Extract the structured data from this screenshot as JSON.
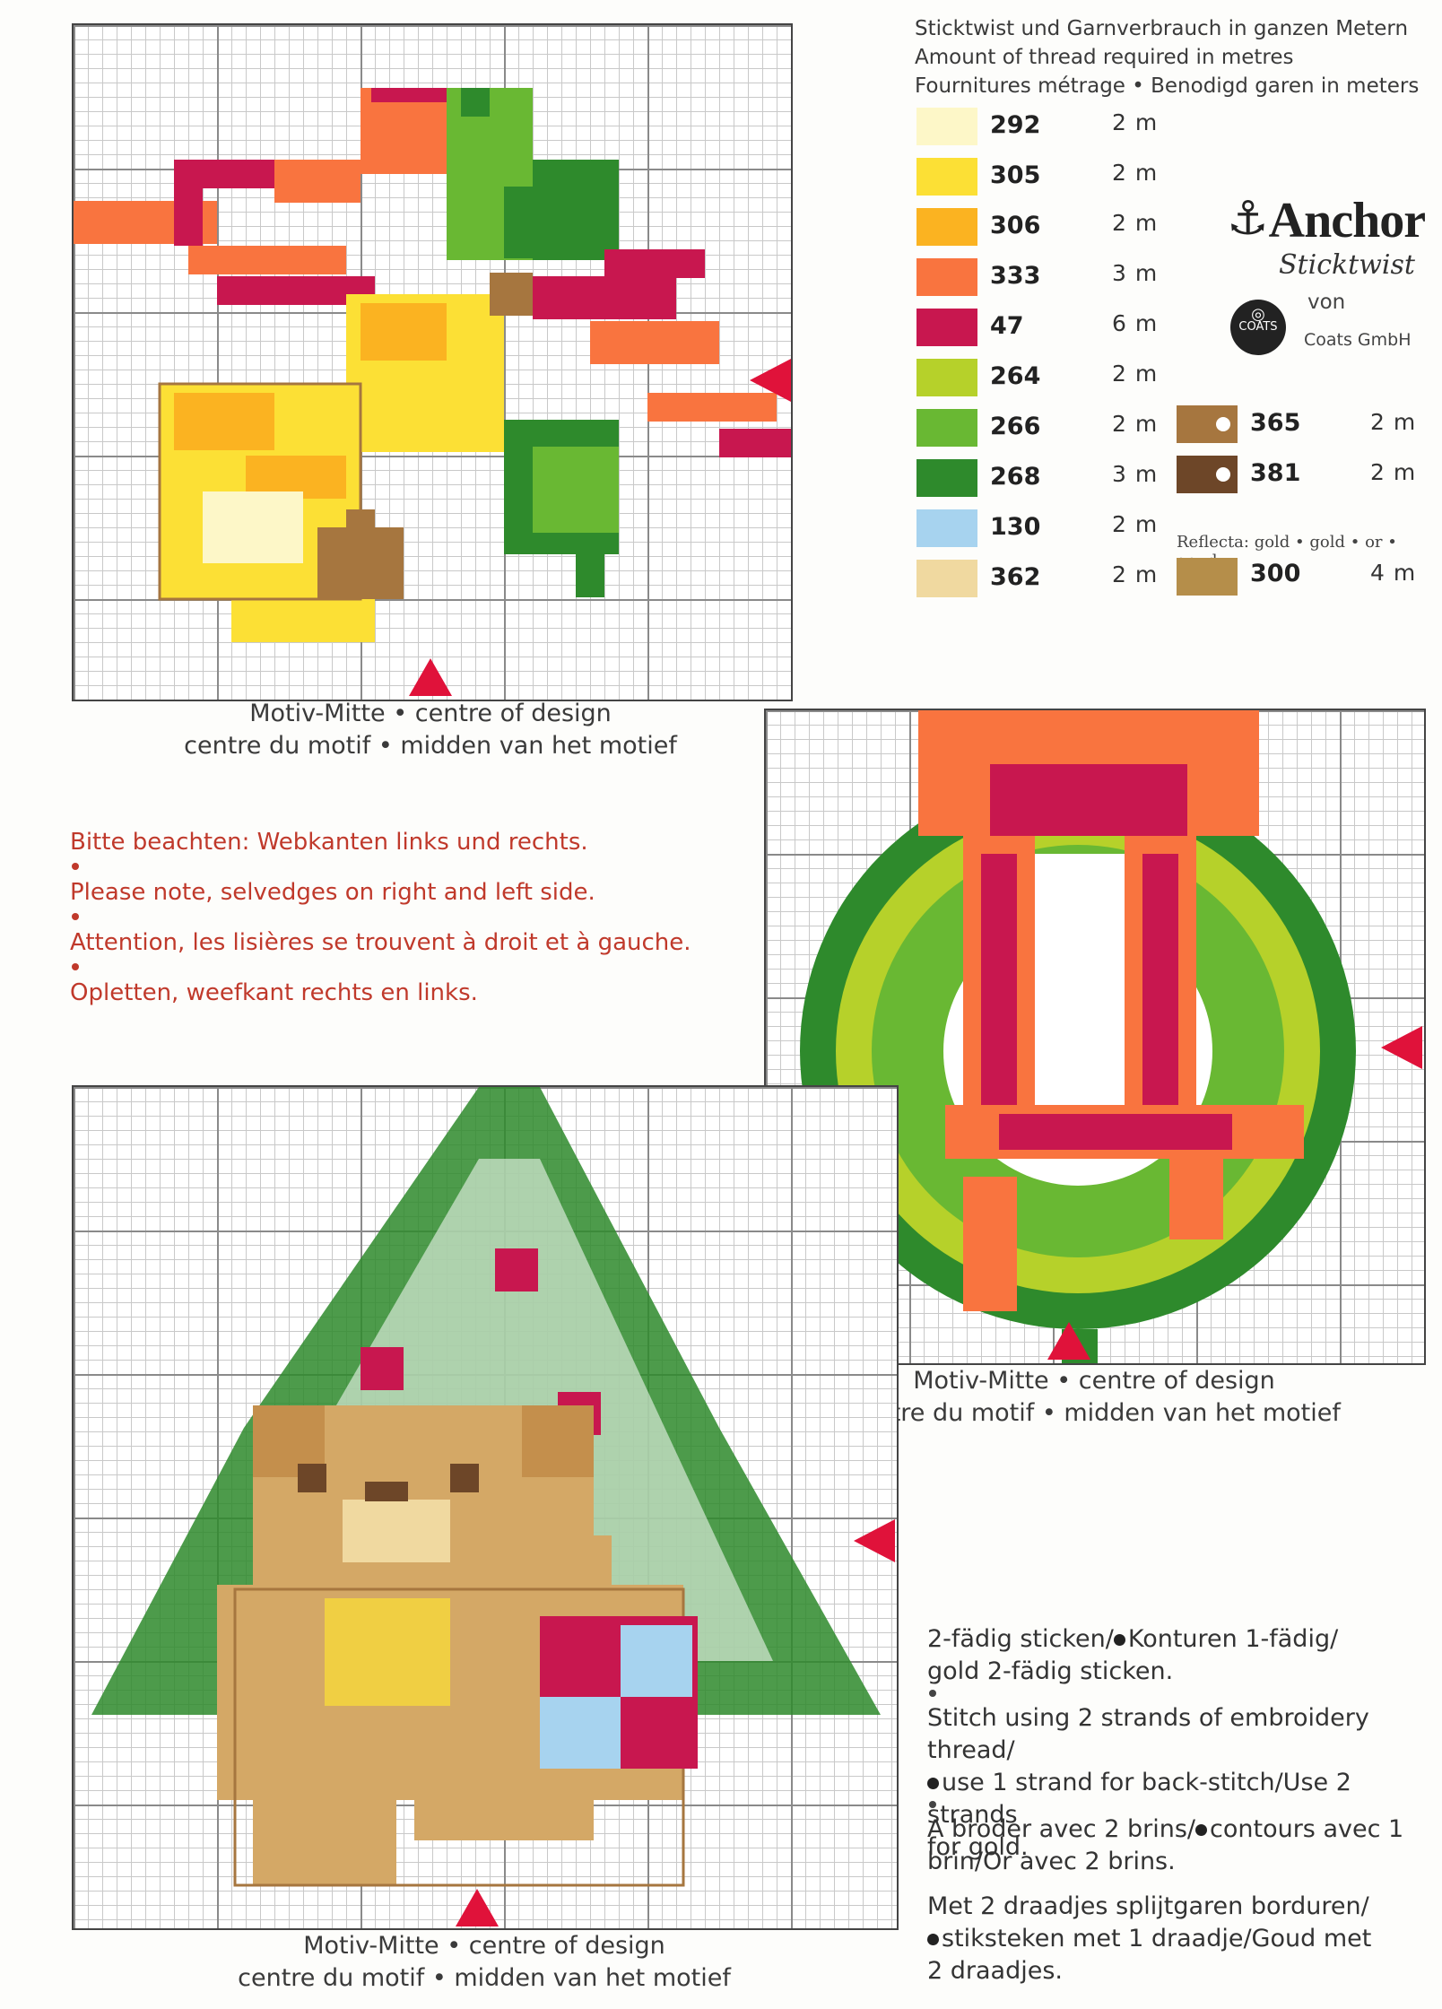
{
  "legend": {
    "header": [
      "Sticktwist und Garnverbrauch in ganzen Metern",
      "Amount of thread required in metres",
      "Fournitures métrage • Benodigd garen in meters"
    ],
    "threads_left": [
      {
        "code": "292",
        "amount": "2 m",
        "color": "#fdf7c8"
      },
      {
        "code": "305",
        "amount": "2 m",
        "color": "#fce035"
      },
      {
        "code": "306",
        "amount": "2 m",
        "color": "#fbb321"
      },
      {
        "code": "333",
        "amount": "3 m",
        "color": "#f9743f"
      },
      {
        "code": "47",
        "amount": "6 m",
        "color": "#c8174f"
      },
      {
        "code": "264",
        "amount": "2 m",
        "color": "#b6d12a"
      },
      {
        "code": "266",
        "amount": "2 m",
        "color": "#69b833"
      },
      {
        "code": "268",
        "amount": "3 m",
        "color": "#2e8a2c"
      },
      {
        "code": "130",
        "amount": "2 m",
        "color": "#a7d3ef"
      },
      {
        "code": "362",
        "amount": "2 m",
        "color": "#f0d9a0"
      }
    ],
    "threads_right": [
      {
        "code": "365",
        "amount": "2 m",
        "color": "#a6763f"
      },
      {
        "code": "381",
        "amount": "2 m",
        "color": "#6d4628"
      }
    ],
    "reflecta_label": "Reflecta: gold • gold • or • goud",
    "reflecta": {
      "code": "300",
      "amount": "4 m",
      "color": "#b58e4a"
    }
  },
  "brand": {
    "name": "Anchor",
    "subtitle": "Sticktwist",
    "von": "von",
    "badge": "COATS",
    "company": "Coats GmbH"
  },
  "captions": {
    "line1": "Motiv-Mitte • centre of design",
    "line2": "centre du motif • midden van het motief"
  },
  "notes": [
    "Bitte beachten: Webkanten links und rechts.",
    "Please note, selvedges on right and left side.",
    "Attention, les lisières se trouvent à droit et à gauche.",
    "Opletten, weefkant rechts en links."
  ],
  "instructions": {
    "de_1": "2-fädig sticken/",
    "de_2": "Konturen 1-fädig/",
    "de_3": "gold 2-fädig sticken.",
    "en_1": "Stitch using 2 strands of embroidery thread/",
    "en_2": "use 1 strand for back-stitch/Use 2 strands",
    "en_3": "for gold.",
    "fr_1": "A broder avec 2 brins/",
    "fr_2": "contours avec 1",
    "fr_3": "brin/Or avec 2 brins.",
    "nl_1": "Met 2 draadjes splijtgaren borduren/",
    "nl_2": "stiksteken met 1 draadje/Goud met",
    "nl_3": "2 draadjes."
  }
}
